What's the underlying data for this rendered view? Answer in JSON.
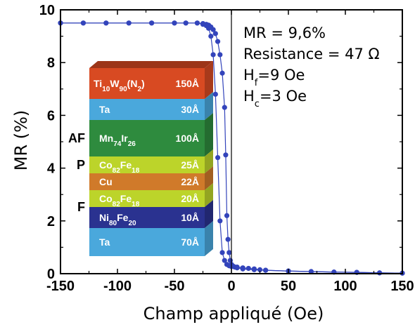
{
  "chart_data": {
    "type": "line",
    "xlabel": "Champ appliqué (Oe)",
    "ylabel": "MR (%)",
    "xlim": [
      -150,
      150
    ],
    "ylim": [
      0,
      10
    ],
    "x_ticks": [
      "-150",
      "-100",
      "-50",
      "0",
      "50",
      "100",
      "150"
    ],
    "y_ticks": [
      "0",
      "2",
      "4",
      "6",
      "8",
      "10"
    ],
    "grid": false,
    "series_color": "#3344bb",
    "series": [
      {
        "values_x": [
          -150,
          -130,
          -110,
          -90,
          -70,
          -50,
          -40,
          -30,
          -25,
          -22,
          -20,
          -18,
          -16,
          -14,
          -12,
          -10,
          -8,
          -6,
          -5,
          -4,
          -3,
          -2,
          -1,
          0,
          1,
          2,
          3,
          5,
          10,
          20,
          30,
          50,
          70,
          90,
          110,
          130,
          150
        ],
        "values_y": [
          9.5,
          9.5,
          9.5,
          9.5,
          9.5,
          9.5,
          9.5,
          9.5,
          9.48,
          9.45,
          9.42,
          9.35,
          9.25,
          9.1,
          8.8,
          8.3,
          7.6,
          6.3,
          4.5,
          2.2,
          1.3,
          0.8,
          0.5,
          0.35,
          0.3,
          0.27,
          0.25,
          0.22,
          0.18,
          0.15,
          0.13,
          0.1,
          0.08,
          0.06,
          0.05,
          0.03,
          0.02
        ]
      },
      {
        "values_x": [
          150,
          130,
          110,
          90,
          70,
          50,
          30,
          25,
          20,
          15,
          10,
          5,
          0,
          -2,
          -4,
          -6,
          -8,
          -10,
          -12,
          -14,
          -16,
          -18,
          -20,
          -22,
          -25,
          -30,
          -40,
          -50,
          -70,
          -90,
          -110,
          -130,
          -150
        ],
        "values_y": [
          0.02,
          0.03,
          0.05,
          0.06,
          0.08,
          0.1,
          0.13,
          0.15,
          0.18,
          0.2,
          0.22,
          0.25,
          0.27,
          0.3,
          0.35,
          0.5,
          0.8,
          2.0,
          4.4,
          6.8,
          8.3,
          9.0,
          9.3,
          9.4,
          9.45,
          9.5,
          9.5,
          9.5,
          9.5,
          9.5,
          9.5,
          9.5,
          9.5
        ]
      }
    ],
    "annotations": [
      {
        "text": "MR = 9,6%"
      },
      {
        "text": "Resistance = 47 Ω"
      },
      {
        "main": "H",
        "sub": "f",
        "rest": "=9 Oe"
      },
      {
        "main": "H",
        "sub": "c",
        "rest": "=3 Oe"
      }
    ],
    "stack": {
      "layers": [
        {
          "main": "Ti",
          "sub1": "10",
          "mid1": "W",
          "sub2": "90",
          "mid2": "(N",
          "sub3": "2",
          "mid3": ")",
          "thickness": "150Å",
          "color": "#d84a22"
        },
        {
          "main": "Ta",
          "thickness": "30Å",
          "color": "#4aa8dc"
        },
        {
          "main": "Mn",
          "sub1": "74",
          "mid1": "Ir",
          "sub2": "26",
          "thickness": "100Å",
          "color": "#2e8b3e"
        },
        {
          "main": "Co",
          "sub1": "82",
          "mid1": "Fe",
          "sub2": "18",
          "thickness": "25Å",
          "color": "#bcd42a"
        },
        {
          "main": "Cu",
          "thickness": "22Å",
          "color": "#d07a2a"
        },
        {
          "main": "Co",
          "sub1": "82",
          "mid1": "Fe",
          "sub2": "18",
          "thickness": "20Å",
          "color": "#bcd42a"
        },
        {
          "main": "Ni",
          "sub1": "80",
          "mid1": "Fe",
          "sub2": "20",
          "thickness": "10Å",
          "color": "#2a3290"
        },
        {
          "main": "Ta",
          "thickness": "70Å",
          "color": "#4aa8dc"
        }
      ],
      "side_labels": [
        "AF",
        "P",
        "F"
      ]
    }
  }
}
